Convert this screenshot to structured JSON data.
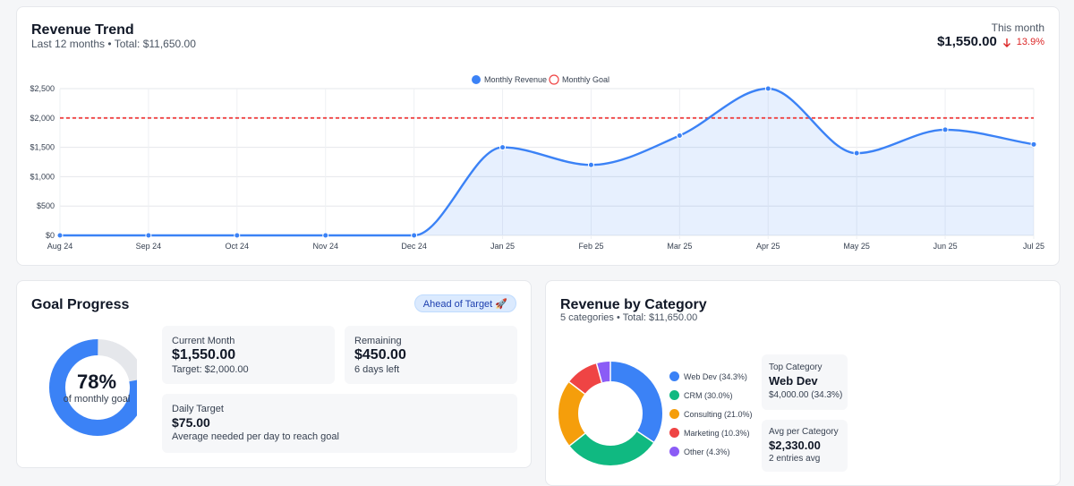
{
  "trend": {
    "title": "Revenue Trend",
    "subtitle": "Last 12 months • Total: $11,650.00",
    "this_month_label": "This month",
    "this_month_value": "$1,550.00",
    "change_text": "13.9%",
    "change_icon": "arrow-down-icon",
    "change_color": "#dc2626",
    "line_color": "#3b82f6",
    "goal_color": "#ef4444"
  },
  "chart_data": {
    "type": "line",
    "categories": [
      "Aug 24",
      "Sep 24",
      "Oct 24",
      "Nov 24",
      "Dec 24",
      "Jan 25",
      "Feb 25",
      "Mar 25",
      "Apr 25",
      "May 25",
      "Jun 25",
      "Jul 25"
    ],
    "series": [
      {
        "name": "Monthly Revenue",
        "values": [
          0,
          0,
          0,
          0,
          0,
          1500,
          1200,
          1700,
          2500,
          1400,
          1800,
          1550
        ],
        "style": "area-smooth"
      },
      {
        "name": "Monthly Goal",
        "values": [
          2000,
          2000,
          2000,
          2000,
          2000,
          2000,
          2000,
          2000,
          2000,
          2000,
          2000,
          2000
        ],
        "style": "dashed"
      }
    ],
    "y_ticks": [
      "$0",
      "$500",
      "$1,000",
      "$1,500",
      "$2,000",
      "$2,500"
    ],
    "y_tick_values": [
      0,
      500,
      1000,
      1500,
      2000,
      2500
    ],
    "ylim": [
      0,
      2500
    ],
    "legend_position": "top-center",
    "grid": true
  },
  "goal": {
    "title": "Goal Progress",
    "badge": "Ahead of Target 🚀",
    "percent_label": "78%",
    "percent_value": 78,
    "caption": "of monthly goal",
    "ring_color": "#3b82f6",
    "track_color": "#e5e7eb",
    "current": {
      "label": "Current Month",
      "value": "$1,550.00",
      "note": "Target: $2,000.00"
    },
    "remaining": {
      "label": "Remaining",
      "value": "$450.00",
      "note": "6 days left"
    },
    "daily": {
      "label": "Daily Target",
      "value": "$75.00",
      "note": "Average needed per day to reach goal"
    }
  },
  "categories": {
    "title": "Revenue by Category",
    "subtitle": "5 categories • Total: $11,650.00",
    "slices": [
      {
        "label": "Web Dev (34.3%)",
        "percent": 34.3,
        "color": "#3b82f6"
      },
      {
        "label": "CRM (30.0%)",
        "percent": 30.0,
        "color": "#10b981"
      },
      {
        "label": "Consulting (21.0%)",
        "percent": 21.0,
        "color": "#f59e0b"
      },
      {
        "label": "Marketing (10.3%)",
        "percent": 10.3,
        "color": "#ef4444"
      },
      {
        "label": "Other (4.3%)",
        "percent": 4.3,
        "color": "#8b5cf6"
      }
    ],
    "top": {
      "label": "Top Category",
      "value": "Web Dev",
      "note": "$4,000.00 (34.3%)"
    },
    "avg": {
      "label": "Avg per Category",
      "value": "$2,330.00",
      "note": "2 entries avg"
    }
  }
}
